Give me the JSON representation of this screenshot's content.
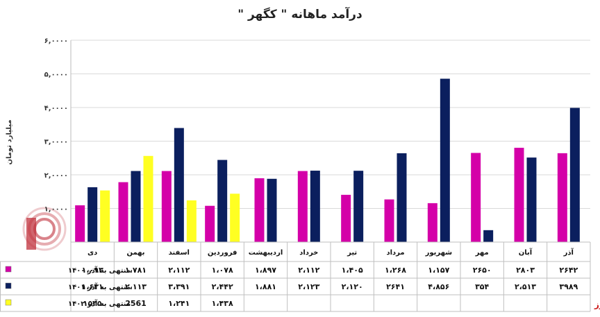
{
  "chart_data": {
    "type": "bar",
    "title": "درآمد ماهانه \" کگهر \"",
    "ylabel": "میلیارد تومان",
    "ylim": [
      0,
      6000
    ],
    "yticks": [
      "۶,۰۰۰۰",
      "۵,۰۰۰۰",
      "۴,۰۰۰۰",
      "۳,۰۰۰۰",
      "۲,۰۰۰۰",
      "۱,۰۰۰۰"
    ],
    "ytick_values": [
      6000,
      5000,
      4000,
      3000,
      2000,
      1000
    ],
    "categories": [
      "آذر",
      "آبان",
      "مهر",
      "شهریور",
      "مرداد",
      "تیر",
      "خرداد",
      "اردیبهشت",
      "فروردین",
      "اسفند",
      "بهمن",
      "دی"
    ],
    "grid": true,
    "series": [
      {
        "name": "منتهی به آذر ۱۴۰۰",
        "color": "#d400a8",
        "values": [
          2642,
          2803,
          2650,
          1157,
          1268,
          1405,
          2112,
          1897,
          1078,
          2112,
          1781,
          1093
        ],
        "labels": [
          "۲۶۴۲",
          "۲۸۰۳",
          "۲۶۵۰",
          "۱،۱۵۷",
          "۱،۲۶۸",
          "۱،۴۰۵",
          "۲،۱۱۲",
          "۱،۸۹۷",
          "۱،۰۷۸",
          "۲،۱۱۲",
          "۱،۷۸۱",
          "۱،۰۹۳"
        ]
      },
      {
        "name": "منتهی به آذر ۱۴۰۱",
        "color": "#0b1f5e",
        "values": [
          3989,
          2513,
          354,
          4856,
          2641,
          2120,
          2123,
          1881,
          2442,
          3391,
          2113,
          1631
        ],
        "labels": [
          "۳۹۸۹",
          "۲،۵۱۳",
          "۳۵۴",
          "۴،۸۵۶",
          "۲۶۴۱",
          "۲،۱۲۰",
          "۲،۱۲۳",
          "۱،۸۸۱",
          "۲،۴۴۲",
          "۳،۳۹۱",
          "۲،۱۱۳",
          "۱،۶۳۱"
        ]
      },
      {
        "name": "منتهی به آذر ۱۴۰۲",
        "color": "#ffff22",
        "values": [
          null,
          null,
          null,
          null,
          null,
          null,
          null,
          null,
          1438,
          1241,
          2561,
          1535
        ],
        "labels": [
          "",
          "",
          "",
          "",
          "",
          "",
          "",
          "",
          "۱،۴۳۸",
          "۱،۲۴۱",
          "2561",
          "۱۵۳۵"
        ]
      }
    ],
    "source": "بورس نیوز"
  }
}
